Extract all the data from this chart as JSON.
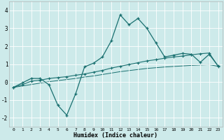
{
  "xlabel": "Humidex (Indice chaleur)",
  "background_color": "#cdeaea",
  "grid_color": "#ffffff",
  "line_color": "#1a7070",
  "xlim": [
    -0.5,
    23.5
  ],
  "ylim": [
    -2.5,
    4.5
  ],
  "yticks": [
    -2,
    -1,
    0,
    1,
    2,
    3,
    4
  ],
  "xticks": [
    0,
    1,
    2,
    3,
    4,
    5,
    6,
    7,
    8,
    9,
    10,
    11,
    12,
    13,
    14,
    15,
    16,
    17,
    18,
    19,
    20,
    21,
    22,
    23
  ],
  "series1_x": [
    0,
    1,
    2,
    3,
    4,
    5,
    6,
    7,
    8,
    9,
    10,
    11,
    12,
    13,
    14,
    15,
    16,
    17,
    18,
    19,
    20,
    21,
    22,
    23
  ],
  "series1_y": [
    -0.3,
    -0.05,
    0.2,
    0.2,
    -0.15,
    -1.3,
    -1.85,
    -0.65,
    0.85,
    1.05,
    1.4,
    2.3,
    3.75,
    3.2,
    3.55,
    3.0,
    2.2,
    1.4,
    1.5,
    1.6,
    1.55,
    1.1,
    1.55,
    0.9
  ],
  "series2_x": [
    0,
    1,
    2,
    3,
    4,
    5,
    6,
    7,
    8,
    9,
    10,
    11,
    12,
    13,
    14,
    15,
    16,
    17,
    18,
    19,
    20,
    21,
    22,
    23
  ],
  "series2_y": [
    -0.3,
    -0.15,
    0.05,
    0.1,
    0.2,
    0.25,
    0.3,
    0.38,
    0.45,
    0.55,
    0.65,
    0.78,
    0.88,
    0.98,
    1.08,
    1.18,
    1.25,
    1.33,
    1.4,
    1.45,
    1.52,
    1.58,
    1.62,
    0.88
  ],
  "series3_x": [
    0,
    1,
    2,
    3,
    4,
    5,
    6,
    7,
    8,
    9,
    10,
    11,
    12,
    13,
    14,
    15,
    16,
    17,
    18,
    19,
    20,
    21,
    22,
    23
  ],
  "series3_y": [
    -0.3,
    -0.22,
    -0.14,
    -0.06,
    0.02,
    0.08,
    0.14,
    0.2,
    0.28,
    0.34,
    0.42,
    0.5,
    0.58,
    0.64,
    0.7,
    0.76,
    0.8,
    0.84,
    0.87,
    0.9,
    0.93,
    0.95,
    0.97,
    0.88
  ]
}
